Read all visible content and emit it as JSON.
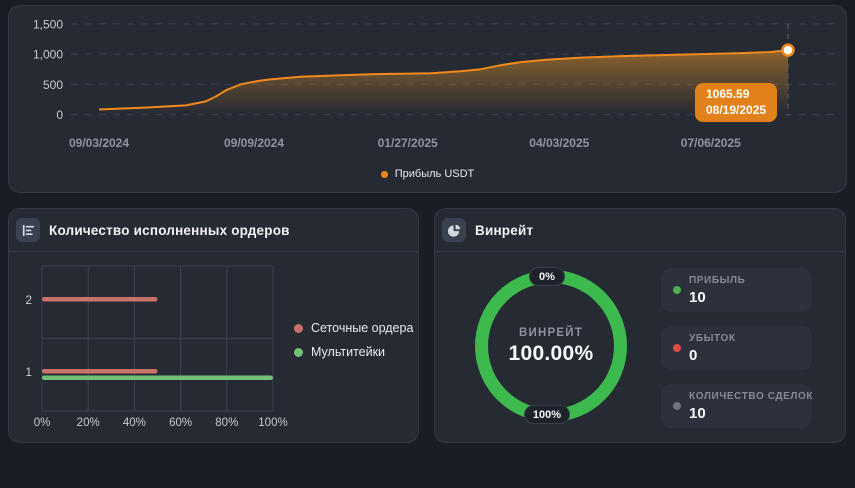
{
  "chart_data": [
    {
      "type": "area",
      "name": "profit-over-time",
      "series": [
        {
          "name": "Прибыль USDT",
          "color": "#F18A1D",
          "points": [
            [
              0,
              83
            ],
            [
              0.073,
              117
            ],
            [
              0.126,
              150
            ],
            [
              0.155,
              217
            ],
            [
              0.17,
              300
            ],
            [
              0.184,
              400
            ],
            [
              0.206,
              500
            ],
            [
              0.228,
              550
            ],
            [
              0.25,
              583
            ],
            [
              0.293,
              625
            ],
            [
              0.351,
              650
            ],
            [
              0.395,
              667
            ],
            [
              0.438,
              675
            ],
            [
              0.482,
              683
            ],
            [
              0.525,
              717
            ],
            [
              0.554,
              750
            ],
            [
              0.583,
              817
            ],
            [
              0.612,
              867
            ],
            [
              0.649,
              908
            ],
            [
              0.7,
              942
            ],
            [
              0.758,
              967
            ],
            [
              0.816,
              983
            ],
            [
              0.874,
              1000
            ],
            [
              0.932,
              1017
            ],
            [
              0.975,
              1035
            ],
            [
              1,
              1065.59
            ]
          ]
        }
      ],
      "x_ticks": [
        {
          "label": "09/03/2024",
          "pos": 0
        },
        {
          "label": "09/09/2024",
          "pos": 0.225
        },
        {
          "label": "01/27/2025",
          "pos": 0.448
        },
        {
          "label": "04/03/2025",
          "pos": 0.668
        },
        {
          "label": "07/06/2025",
          "pos": 0.888
        }
      ],
      "y_ticks": [
        {
          "label": "0",
          "value": 0
        },
        {
          "label": "500",
          "value": 500
        },
        {
          "label": "1,000",
          "value": 1000
        },
        {
          "label": "1,500",
          "value": 1500
        }
      ],
      "ylim": [
        0,
        1500
      ],
      "grid": "dashed-horizontal",
      "legend_position": "bottom-center",
      "marker": {
        "x": 1,
        "y": 1065.59
      },
      "tooltip": {
        "value": "1065.59",
        "date": "08/19/2025"
      }
    },
    {
      "type": "bar",
      "orientation": "horizontal",
      "name": "executed-orders",
      "categories": [
        "2",
        "1"
      ],
      "series": [
        {
          "name": "Сеточные ордера",
          "color": "#C9726B",
          "values": [
            50,
            50
          ]
        },
        {
          "name": "Мультитейки",
          "color": "#71C277",
          "values": [
            null,
            100
          ]
        }
      ],
      "x_ticks": [
        "0%",
        "20%",
        "40%",
        "60%",
        "80%",
        "100%"
      ],
      "xlim": [
        0,
        100
      ],
      "grid": "on",
      "legend_position": "right"
    },
    {
      "type": "donut",
      "name": "winrate",
      "center_label": "ВИНРЕЙТ",
      "center_value": "100.00%",
      "value": 100,
      "color": "#3DBA4E",
      "scale_top": "0%",
      "scale_bottom": "100%"
    }
  ],
  "orders_panel": {
    "title": "Количество исполненных ордеров"
  },
  "winrate_panel": {
    "title": "Винрейт",
    "stats": [
      {
        "label": "ПРИБЫЛЬ",
        "value": "10",
        "dot_color": "#4CB050"
      },
      {
        "label": "УБЫТОК",
        "value": "0",
        "dot_color": "#E04A41"
      },
      {
        "label": "КОЛИЧЕСТВО СДЕЛОК",
        "value": "10",
        "dot_color": "#6E737C"
      }
    ]
  }
}
